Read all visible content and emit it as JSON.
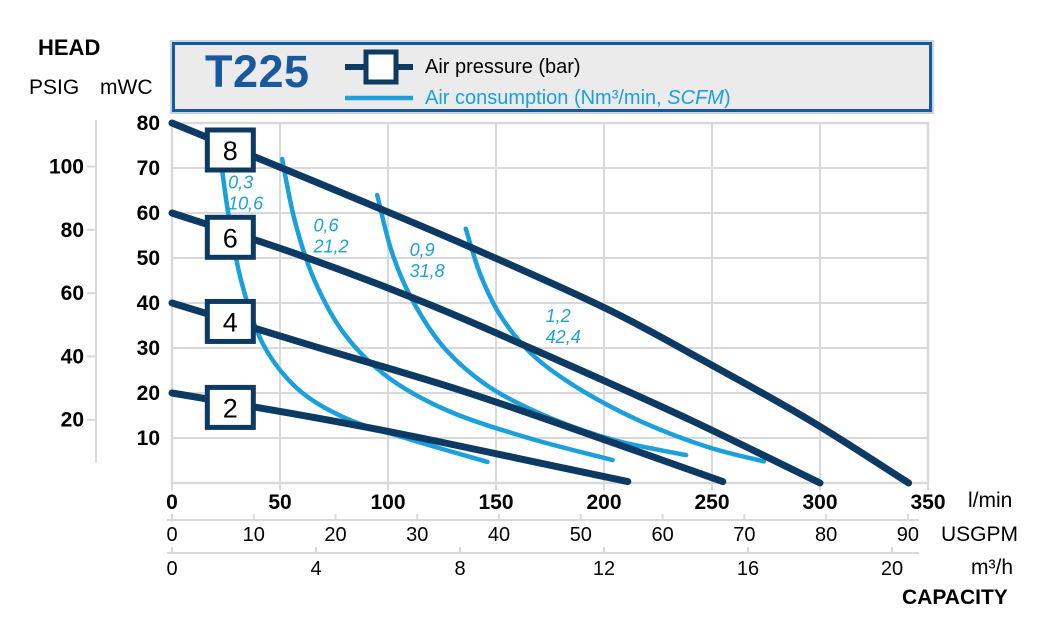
{
  "axis_titles": {
    "head": "HEAD",
    "psig": "PSIG",
    "mwc": "mWC"
  },
  "legend": {
    "model": "T225",
    "air_pressure": "Air pressure (bar)",
    "air_consumption_main": "Air consumption (Nm³/min, ",
    "air_consumption_italic": "SCFM",
    "air_consumption_close": ")"
  },
  "axes_labels": {
    "lmin_unit": "l/min",
    "usgpm_unit": "USGPM",
    "m3h_unit": "m³/h",
    "capacity": "CAPACITY"
  },
  "colors": {
    "navy": "#0d3a63",
    "light_blue": "#1ba0dc",
    "brand_blue": "#17599c",
    "grid": "#d9d9d9",
    "legend_bg": "#ebebeb"
  },
  "chart_data": {
    "type": "line",
    "title": "T225",
    "grid": true,
    "x_axis": {
      "label": "CAPACITY",
      "units": [
        "l/min",
        "USGPM",
        "m³/h"
      ],
      "range_lmin": [
        0,
        350
      ],
      "ticks_lmin": [
        0,
        50,
        100,
        150,
        200,
        250,
        300,
        350
      ],
      "ticks_usgpm": [
        0,
        10,
        20,
        30,
        40,
        50,
        60,
        70,
        80,
        90
      ],
      "ticks_m3h": [
        0,
        4,
        8,
        12,
        16,
        20
      ]
    },
    "y_axis": {
      "label": "HEAD",
      "units": [
        "mWC",
        "PSIG"
      ],
      "range_mwc": [
        0,
        80
      ],
      "ticks_mwc": [
        80,
        70,
        60,
        50,
        40,
        30,
        20,
        10
      ],
      "ticks_psig": [
        100,
        80,
        60,
        40,
        20
      ]
    },
    "pressure_curves": [
      {
        "bar": 8,
        "marker_label": "8",
        "marker_at": {
          "lmin": 27,
          "mwc": 74
        },
        "points_lmin_mwc": [
          [
            0,
            80
          ],
          [
            66,
            67
          ],
          [
            133,
            53.5
          ],
          [
            200,
            39
          ],
          [
            245,
            27.5
          ],
          [
            295,
            14
          ],
          [
            341,
            0
          ]
        ]
      },
      {
        "bar": 6,
        "marker_label": "6",
        "marker_at": {
          "lmin": 27,
          "mwc": 54.6
        },
        "points_lmin_mwc": [
          [
            0,
            60
          ],
          [
            60,
            50.5
          ],
          [
            120,
            39.5
          ],
          [
            180,
            27
          ],
          [
            240,
            14
          ],
          [
            300,
            0
          ]
        ]
      },
      {
        "bar": 4,
        "marker_label": "4",
        "marker_at": {
          "lmin": 27,
          "mwc": 35.9
        },
        "points_lmin_mwc": [
          [
            0,
            40
          ],
          [
            65,
            30.5
          ],
          [
            133,
            20.7
          ],
          [
            195,
            10.5
          ],
          [
            255,
            0.3
          ]
        ]
      },
      {
        "bar": 2,
        "marker_label": "2",
        "marker_at": {
          "lmin": 27,
          "mwc": 16.8
        },
        "points_lmin_mwc": [
          [
            0,
            20
          ],
          [
            55,
            15.5
          ],
          [
            105,
            11
          ],
          [
            160,
            5.5
          ],
          [
            211,
            0.3
          ]
        ]
      }
    ],
    "consumption_curves": [
      {
        "nm3_min_label": "0,3",
        "scfm_label": "10,6",
        "nm3_min": 0.3,
        "scfm": 10.6,
        "label_at": {
          "lmin": 26,
          "mwc": 69
        },
        "points_lmin_mwc": [
          [
            22,
            74
          ],
          [
            26,
            60
          ],
          [
            32,
            45
          ],
          [
            42,
            31
          ],
          [
            58,
            21
          ],
          [
            80,
            14.5
          ],
          [
            108,
            10
          ],
          [
            146,
            4.7
          ]
        ]
      },
      {
        "nm3_min_label": "0,6",
        "scfm_label": "21,2",
        "nm3_min": 0.6,
        "scfm": 21.2,
        "label_at": {
          "lmin": 65.5,
          "mwc": 59.5
        },
        "points_lmin_mwc": [
          [
            51,
            72
          ],
          [
            57,
            58
          ],
          [
            66,
            45
          ],
          [
            80,
            33
          ],
          [
            100,
            23.5
          ],
          [
            128,
            16
          ],
          [
            165,
            10
          ],
          [
            204,
            5.1
          ]
        ]
      },
      {
        "nm3_min_label": "0,9",
        "scfm_label": "31,8",
        "nm3_min": 0.9,
        "scfm": 31.8,
        "label_at": {
          "lmin": 110,
          "mwc": 54
        },
        "points_lmin_mwc": [
          [
            95,
            64
          ],
          [
            102,
            51
          ],
          [
            112,
            40
          ],
          [
            127,
            29.5
          ],
          [
            148,
            21
          ],
          [
            175,
            14.5
          ],
          [
            205,
            9.5
          ],
          [
            238,
            6.2
          ]
        ]
      },
      {
        "nm3_min_label": "1,2",
        "scfm_label": "42,4",
        "nm3_min": 1.2,
        "scfm": 42.4,
        "label_at": {
          "lmin": 173,
          "mwc": 39.3
        },
        "points_lmin_mwc": [
          [
            136,
            56.5
          ],
          [
            143,
            46
          ],
          [
            153,
            36.5
          ],
          [
            168,
            28
          ],
          [
            190,
            20.5
          ],
          [
            218,
            13.5
          ],
          [
            248,
            8
          ],
          [
            274,
            4.8
          ]
        ]
      }
    ]
  }
}
